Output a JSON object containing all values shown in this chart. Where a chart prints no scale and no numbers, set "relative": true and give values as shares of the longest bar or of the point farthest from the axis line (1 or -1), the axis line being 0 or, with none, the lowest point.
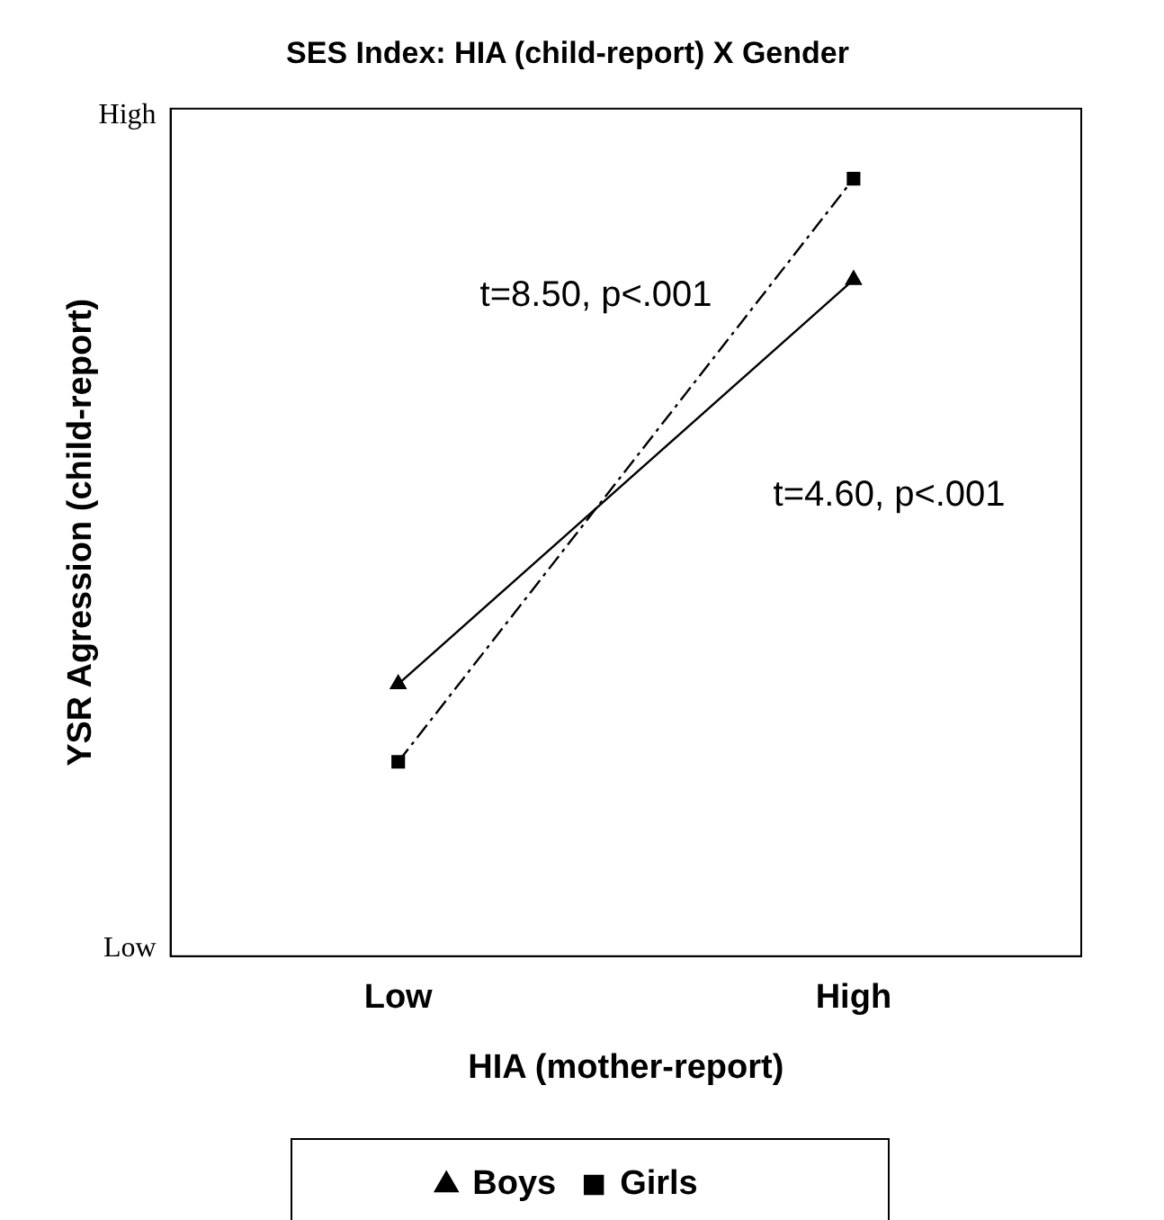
{
  "chart_data": {
    "type": "line",
    "title": "SES Index: HIA (child-report) X Gender",
    "xlabel": "HIA (mother-report)",
    "ylabel": "YSR Agression (child-report)",
    "categories": [
      "Low",
      "High"
    ],
    "relative": true,
    "legend": "bottom",
    "grid": false,
    "series": [
      {
        "name": "Boys",
        "color": "#000000",
        "values": [
          0.35,
          0.87
        ],
        "marker": "triangle",
        "line_style": "solid"
      },
      {
        "name": "Girls",
        "color": "#000000",
        "values": [
          0.25,
          1
        ],
        "marker": "square",
        "line_style": "dashed"
      }
    ],
    "annotations": [
      "High",
      "Low",
      "t=8.50, p<.001",
      "t=4.60, p<.001"
    ]
  }
}
